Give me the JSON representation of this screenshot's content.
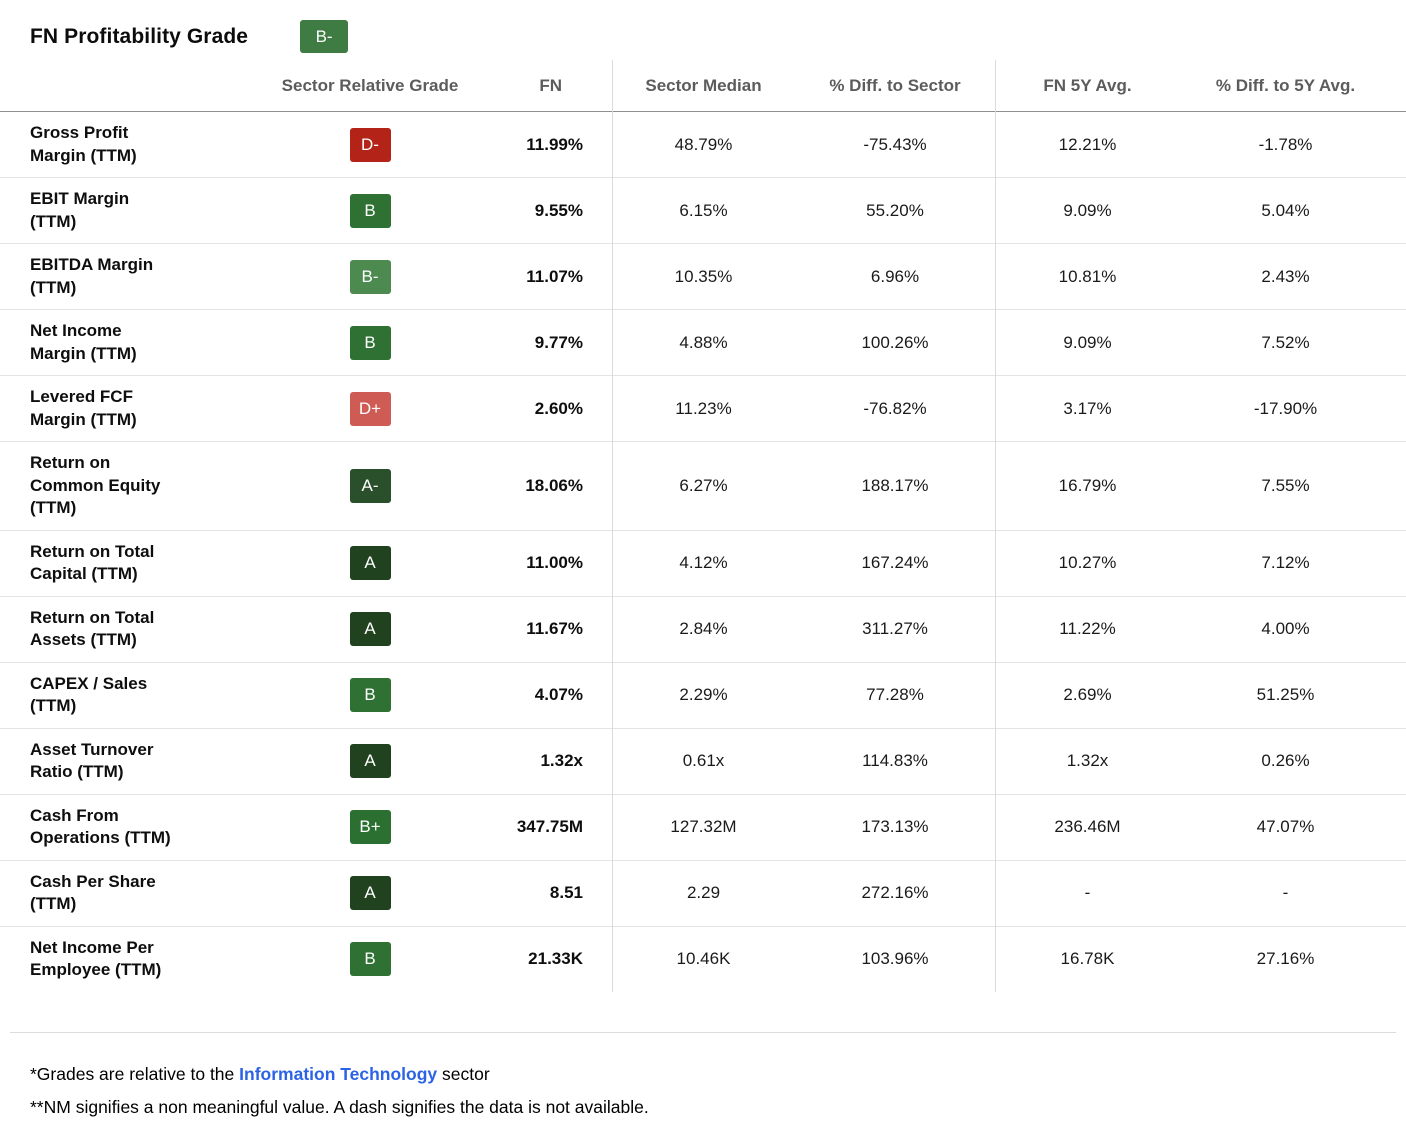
{
  "header": {
    "title": "FN Profitability Grade",
    "grade": "B-",
    "grade_color": "#3f7c43"
  },
  "grade_colors": {
    "A": "#20421f",
    "A-": "#2a4f2b",
    "B+": "#2b7031",
    "B": "#2e7132",
    "B-": "#4c8a50",
    "D+": "#ce5b54",
    "D-": "#b32318"
  },
  "table": {
    "columns": {
      "grade": "Sector Relative Grade",
      "fn": "FN",
      "sector_median": "Sector Median",
      "diff_sector": "% Diff. to Sector",
      "fn_5y": "FN 5Y Avg.",
      "diff_5y": "% Diff. to 5Y Avg."
    },
    "rows": [
      {
        "metric": "Gross Profit\nMargin (TTM)",
        "grade": "D-",
        "fn": "11.99%",
        "sector_median": "48.79%",
        "diff_sector": "-75.43%",
        "fn_5y": "12.21%",
        "diff_5y": "-1.78%"
      },
      {
        "metric": "EBIT Margin\n(TTM)",
        "grade": "B",
        "fn": "9.55%",
        "sector_median": "6.15%",
        "diff_sector": "55.20%",
        "fn_5y": "9.09%",
        "diff_5y": "5.04%"
      },
      {
        "metric": "EBITDA Margin\n(TTM)",
        "grade": "B-",
        "fn": "11.07%",
        "sector_median": "10.35%",
        "diff_sector": "6.96%",
        "fn_5y": "10.81%",
        "diff_5y": "2.43%"
      },
      {
        "metric": "Net Income\nMargin (TTM)",
        "grade": "B",
        "fn": "9.77%",
        "sector_median": "4.88%",
        "diff_sector": "100.26%",
        "fn_5y": "9.09%",
        "diff_5y": "7.52%"
      },
      {
        "metric": "Levered FCF\nMargin (TTM)",
        "grade": "D+",
        "fn": "2.60%",
        "sector_median": "11.23%",
        "diff_sector": "-76.82%",
        "fn_5y": "3.17%",
        "diff_5y": "-17.90%"
      },
      {
        "metric": "Return on\nCommon Equity\n(TTM)",
        "grade": "A-",
        "fn": "18.06%",
        "sector_median": "6.27%",
        "diff_sector": "188.17%",
        "fn_5y": "16.79%",
        "diff_5y": "7.55%"
      },
      {
        "metric": "Return on Total\nCapital (TTM)",
        "grade": "A",
        "fn": "11.00%",
        "sector_median": "4.12%",
        "diff_sector": "167.24%",
        "fn_5y": "10.27%",
        "diff_5y": "7.12%"
      },
      {
        "metric": "Return on Total\nAssets (TTM)",
        "grade": "A",
        "fn": "11.67%",
        "sector_median": "2.84%",
        "diff_sector": "311.27%",
        "fn_5y": "11.22%",
        "diff_5y": "4.00%"
      },
      {
        "metric": "CAPEX / Sales\n(TTM)",
        "grade": "B",
        "fn": "4.07%",
        "sector_median": "2.29%",
        "diff_sector": "77.28%",
        "fn_5y": "2.69%",
        "diff_5y": "51.25%"
      },
      {
        "metric": "Asset Turnover\nRatio (TTM)",
        "grade": "A",
        "fn": "1.32x",
        "sector_median": "0.61x",
        "diff_sector": "114.83%",
        "fn_5y": "1.32x",
        "diff_5y": "0.26%"
      },
      {
        "metric": "Cash From\nOperations (TTM)",
        "grade": "B+",
        "fn": "347.75M",
        "sector_median": "127.32M",
        "diff_sector": "173.13%",
        "fn_5y": "236.46M",
        "diff_5y": "47.07%"
      },
      {
        "metric": "Cash Per Share\n(TTM)",
        "grade": "A",
        "fn": "8.51",
        "sector_median": "2.29",
        "diff_sector": "272.16%",
        "fn_5y": "-",
        "diff_5y": "-"
      },
      {
        "metric": "Net Income Per\nEmployee (TTM)",
        "grade": "B",
        "fn": "21.33K",
        "sector_median": "10.46K",
        "diff_sector": "103.96%",
        "fn_5y": "16.78K",
        "diff_5y": "27.16%"
      }
    ]
  },
  "footnotes": {
    "note1_prefix": "*Grades are relative to the ",
    "note1_link": "Information Technology",
    "note1_suffix": " sector",
    "note2": "**NM signifies a non meaningful value. A dash signifies the data is not available."
  }
}
